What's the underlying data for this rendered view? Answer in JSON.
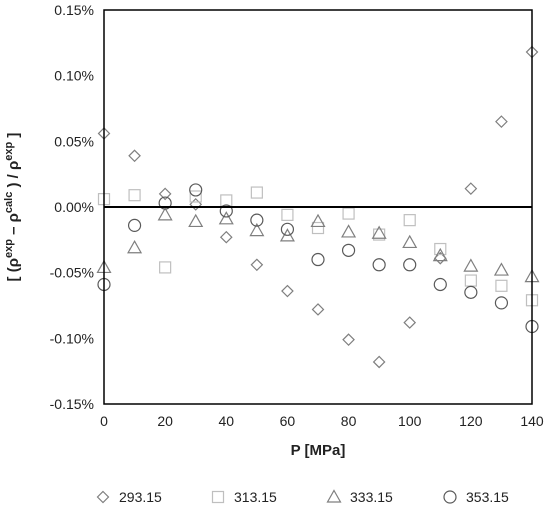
{
  "chart_data": {
    "type": "scatter",
    "xlabel": "P [MPa]",
    "ylabel": "[ (ρ^exp – ρ^calc ) / ρ^exp ]",
    "xlim": [
      0,
      140
    ],
    "ylim": [
      -0.15,
      0.15
    ],
    "x_ticks": [
      "0",
      "20",
      "40",
      "60",
      "80",
      "100",
      "120",
      "140"
    ],
    "y_ticks": [
      "0.15%",
      "0.10%",
      "0.05%",
      "0.00%",
      "-0.05%",
      "-0.10%",
      "-0.15%"
    ],
    "grid": false,
    "legend_position": "bottom",
    "series": [
      {
        "name": "293.15",
        "marker": "diamond",
        "color": "#7f7f7f",
        "points": [
          [
            0,
            0.056
          ],
          [
            10,
            0.039
          ],
          [
            20,
            0.01
          ],
          [
            30,
            0.002
          ],
          [
            40,
            -0.023
          ],
          [
            50,
            -0.044
          ],
          [
            60,
            -0.064
          ],
          [
            70,
            -0.078
          ],
          [
            80,
            -0.101
          ],
          [
            90,
            -0.118
          ],
          [
            100,
            -0.088
          ],
          [
            110,
            -0.039
          ],
          [
            120,
            0.014
          ],
          [
            130,
            0.065
          ],
          [
            140,
            0.118
          ]
        ]
      },
      {
        "name": "313.15",
        "marker": "square",
        "color": "#bfbfbf",
        "points": [
          [
            0,
            0.006
          ],
          [
            10,
            0.009
          ],
          [
            20,
            -0.046
          ],
          [
            30,
            0.008
          ],
          [
            40,
            0.005
          ],
          [
            50,
            0.011
          ],
          [
            60,
            -0.006
          ],
          [
            70,
            -0.016
          ],
          [
            80,
            -0.005
          ],
          [
            90,
            -0.021
          ],
          [
            100,
            -0.01
          ],
          [
            110,
            -0.032
          ],
          [
            120,
            -0.056
          ],
          [
            130,
            -0.06
          ],
          [
            140,
            -0.071
          ]
        ]
      },
      {
        "name": "333.15",
        "marker": "triangle",
        "color": "#7f7f7f",
        "points": [
          [
            0,
            -0.046
          ],
          [
            10,
            -0.031
          ],
          [
            20,
            -0.006
          ],
          [
            30,
            -0.011
          ],
          [
            40,
            -0.009
          ],
          [
            50,
            -0.018
          ],
          [
            60,
            -0.022
          ],
          [
            70,
            -0.011
          ],
          [
            80,
            -0.019
          ],
          [
            90,
            -0.02
          ],
          [
            100,
            -0.027
          ],
          [
            110,
            -0.037
          ],
          [
            120,
            -0.045
          ],
          [
            130,
            -0.048
          ],
          [
            140,
            -0.053
          ]
        ]
      },
      {
        "name": "353.15",
        "marker": "circle",
        "color": "#595959",
        "points": [
          [
            0,
            -0.059
          ],
          [
            10,
            -0.014
          ],
          [
            20,
            0.003
          ],
          [
            30,
            0.013
          ],
          [
            40,
            -0.003
          ],
          [
            50,
            -0.01
          ],
          [
            60,
            -0.017
          ],
          [
            70,
            -0.04
          ],
          [
            80,
            -0.033
          ],
          [
            90,
            -0.044
          ],
          [
            100,
            -0.044
          ],
          [
            110,
            -0.059
          ],
          [
            120,
            -0.065
          ],
          [
            130,
            -0.073
          ],
          [
            140,
            -0.091
          ]
        ]
      }
    ]
  }
}
